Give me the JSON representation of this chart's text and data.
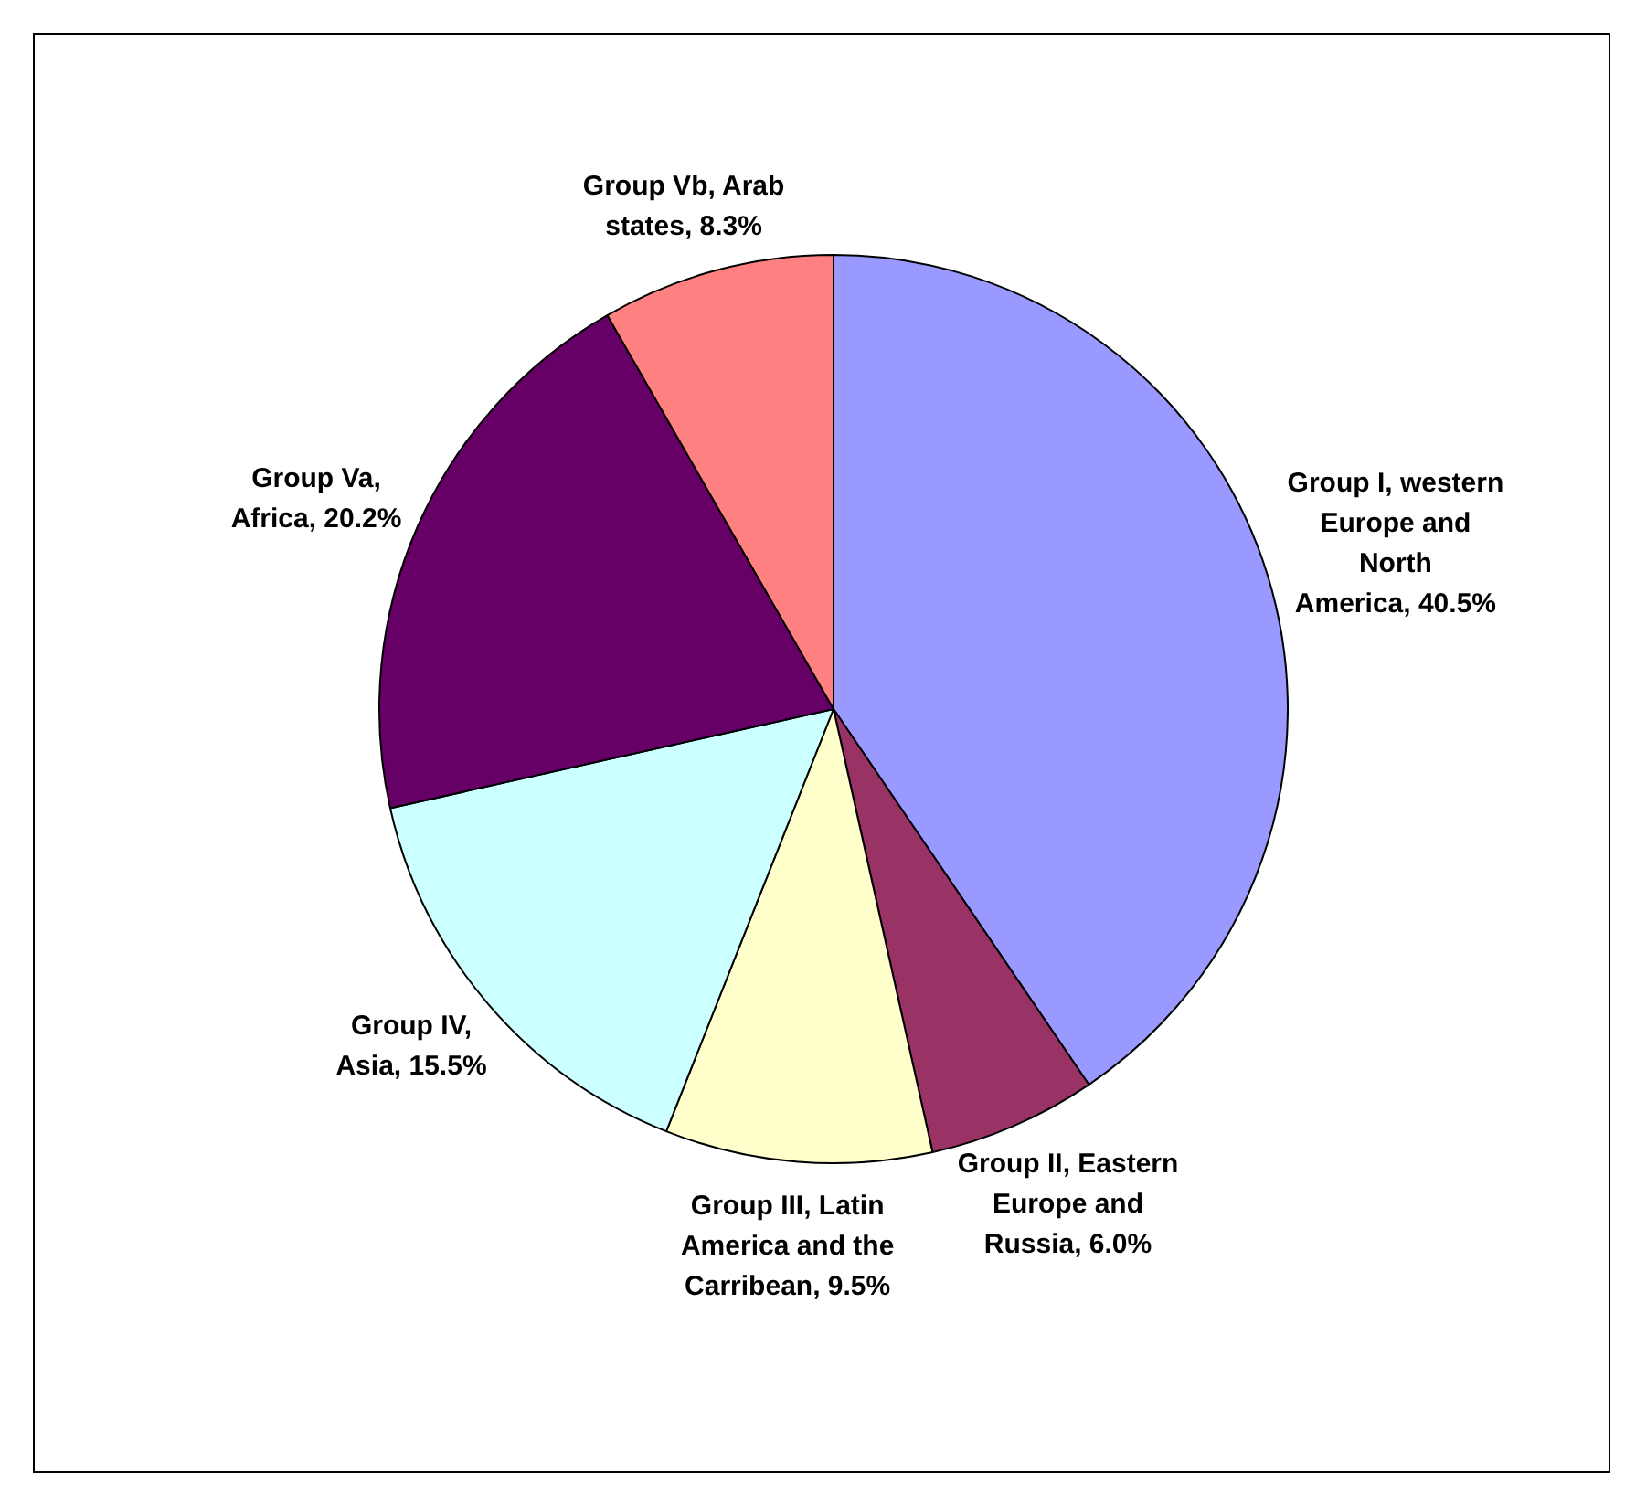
{
  "chart_data": {
    "type": "pie",
    "categories": [
      "Group I, western Europe and North America",
      "Group II, Eastern Europe and Russia",
      "Group III, Latin America and the Carribean",
      "Group IV, Asia",
      "Group Va, Africa",
      "Group Vb, Arab states"
    ],
    "values": [
      40.5,
      6.0,
      9.5,
      15.5,
      20.2,
      8.3
    ],
    "value_labels": [
      "40.5%",
      "6.0%",
      "9.5%",
      "15.5%",
      "20.2%",
      "8.3%"
    ],
    "colors": [
      "#9999ff",
      "#993366",
      "#ffffcc",
      "#ccffff",
      "#660066",
      "#ff8080"
    ],
    "legend": false
  }
}
